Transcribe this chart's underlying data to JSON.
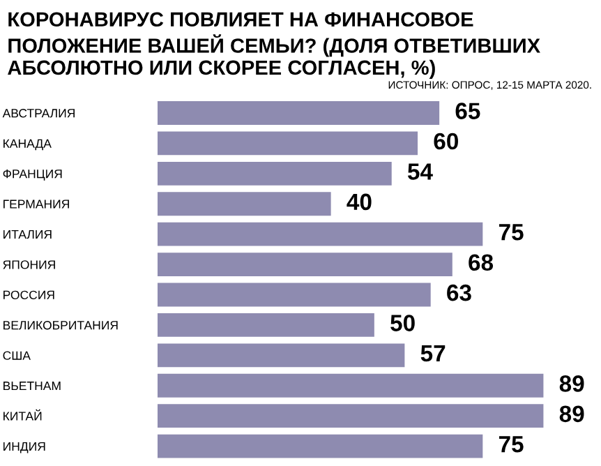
{
  "chart_data": {
    "type": "bar",
    "orientation": "horizontal",
    "title": "КОРОНАВИРУС ПОВЛИЯЕТ НА ФИНАНСОВОЕ ПОЛОЖЕНИЕ ВАШЕЙ СЕМЬИ? (ДОЛЯ ОТВЕТИВШИХ АБСОЛЮТНО ИЛИ СКОРЕЕ СОГЛАСЕН, %)",
    "subtitle": "ИСТОЧНИК: ОПРОС, 12-15 МАРТА 2020.",
    "categories": [
      "АВСТРАЛИЯ",
      "КАНАДА",
      "ФРАНЦИЯ",
      "ГЕРМАНИЯ",
      "ИТАЛИЯ",
      "ЯПОНИЯ",
      "РОССИЯ",
      "ВЕЛИКОБРИТАНИЯ",
      "США",
      "ВЬЕТНАМ",
      "КИТАЙ",
      "ИНДИЯ"
    ],
    "values": [
      65,
      60,
      54,
      40,
      75,
      68,
      63,
      50,
      57,
      89,
      89,
      75
    ],
    "color": "#8e8bb0",
    "data_labels": true,
    "grid": false,
    "legend": false
  }
}
